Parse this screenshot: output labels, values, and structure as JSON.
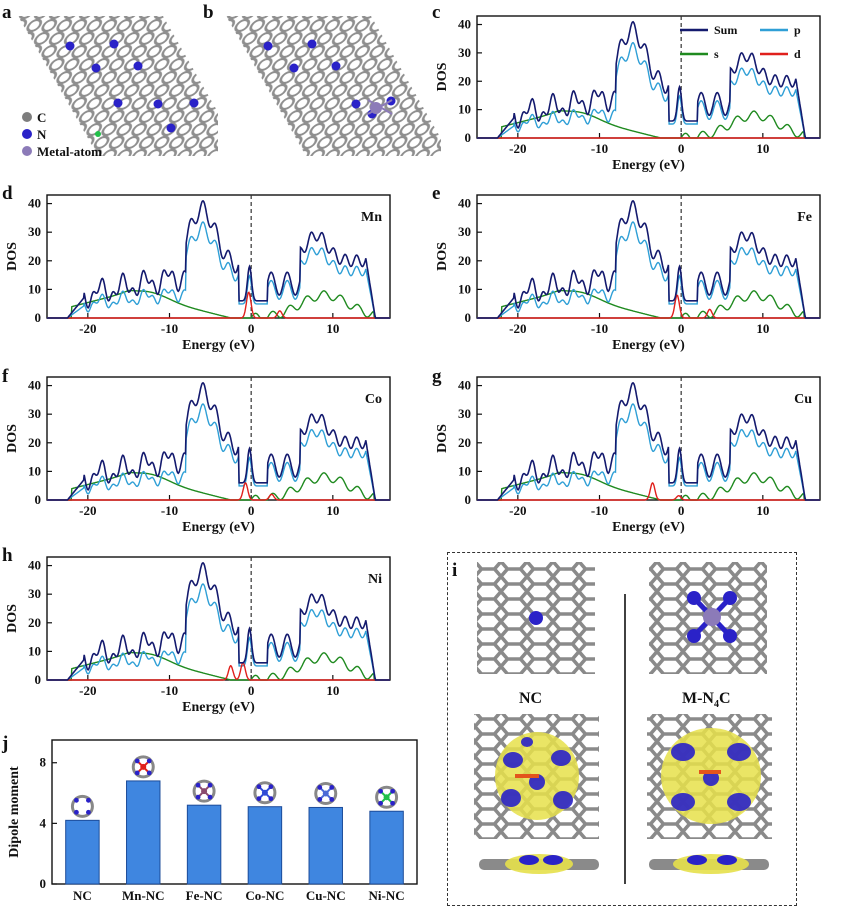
{
  "figure": {
    "panel_letters": [
      "a",
      "b",
      "c",
      "d",
      "e",
      "f",
      "g",
      "h",
      "i",
      "j"
    ],
    "atom_legend": [
      {
        "label": "C",
        "color": "#7d7d7d"
      },
      {
        "label": "N",
        "color": "#2a22c8"
      },
      {
        "label": "Metal-atom",
        "color": "#8c7bb8"
      }
    ],
    "dos_legend": [
      {
        "label": "Sum",
        "color": "#141a6e"
      },
      {
        "label": "p",
        "color": "#2f9fd6"
      },
      {
        "label": "s",
        "color": "#1f8a1f"
      },
      {
        "label": "d",
        "color": "#e0201c"
      }
    ],
    "panel_i": {
      "left_label": "NC",
      "right_label_main": "M-N",
      "right_sub": "4",
      "right_tail": "C"
    }
  },
  "chart_data": [
    {
      "panel": "c",
      "type": "line",
      "metal": "",
      "xlabel": "Energy (eV)",
      "ylabel": "DOS",
      "xlim": [
        -25,
        17
      ],
      "ylim": [
        0,
        43
      ],
      "xticks": [
        -20,
        -10,
        0,
        10
      ],
      "yticks": [
        0,
        10,
        20,
        30,
        40
      ],
      "fermi_level": 0,
      "has_d": false,
      "d_peaks": [],
      "series": [
        "Sum",
        "p",
        "s",
        "d"
      ]
    },
    {
      "panel": "d",
      "type": "line",
      "metal": "Mn",
      "xlabel": "Energy (eV)",
      "ylabel": "DOS",
      "xlim": [
        -25,
        17
      ],
      "ylim": [
        0,
        43
      ],
      "xticks": [
        -20,
        -10,
        0,
        10
      ],
      "yticks": [
        0,
        10,
        20,
        30,
        40
      ],
      "fermi_level": 0,
      "has_d": true,
      "d_peaks": [
        [
          -0.3,
          9
        ],
        [
          3.5,
          2.5
        ]
      ]
    },
    {
      "panel": "e",
      "type": "line",
      "metal": "Fe",
      "xlabel": "Energy (eV)",
      "ylabel": "DOS",
      "xlim": [
        -25,
        17
      ],
      "ylim": [
        0,
        43
      ],
      "xticks": [
        -20,
        -10,
        0,
        10
      ],
      "yticks": [
        0,
        10,
        20,
        30,
        40
      ],
      "fermi_level": 0,
      "has_d": true,
      "d_peaks": [
        [
          -0.5,
          8
        ],
        [
          3.5,
          3
        ]
      ]
    },
    {
      "panel": "f",
      "type": "line",
      "metal": "Co",
      "xlabel": "Energy (eV)",
      "ylabel": "DOS",
      "xlim": [
        -25,
        17
      ],
      "ylim": [
        0,
        43
      ],
      "xticks": [
        -20,
        -10,
        0,
        10
      ],
      "yticks": [
        0,
        10,
        20,
        30,
        40
      ],
      "fermi_level": 0,
      "has_d": true,
      "d_peaks": [
        [
          -0.7,
          6
        ],
        [
          2.5,
          2
        ]
      ]
    },
    {
      "panel": "g",
      "type": "line",
      "metal": "Cu",
      "xlabel": "Energy (eV)",
      "ylabel": "DOS",
      "xlim": [
        -25,
        17
      ],
      "ylim": [
        0,
        43
      ],
      "xticks": [
        -20,
        -10,
        0,
        10
      ],
      "yticks": [
        0,
        10,
        20,
        30,
        40
      ],
      "fermi_level": 0,
      "has_d": true,
      "d_peaks": [
        [
          -3.5,
          6
        ],
        [
          -0.3,
          1.5
        ]
      ]
    },
    {
      "panel": "h",
      "type": "line",
      "metal": "Ni",
      "xlabel": "Energy (eV)",
      "ylabel": "DOS",
      "xlim": [
        -25,
        17
      ],
      "ylim": [
        0,
        43
      ],
      "xticks": [
        -20,
        -10,
        0,
        10
      ],
      "yticks": [
        0,
        10,
        20,
        30,
        40
      ],
      "fermi_level": 0,
      "has_d": true,
      "d_peaks": [
        [
          -2.5,
          5
        ],
        [
          -1.0,
          6
        ]
      ]
    },
    {
      "panel": "j",
      "type": "bar",
      "xlabel": "",
      "ylabel": "Dipole moment",
      "categories": [
        "NC",
        "Mn-NC",
        "Fe-NC",
        "Co-NC",
        "Cu-NC",
        "Ni-NC"
      ],
      "values": [
        4.2,
        6.8,
        5.2,
        5.1,
        5.05,
        4.8
      ],
      "ylim": [
        0,
        9.5
      ],
      "yticks": [
        0,
        4,
        8
      ],
      "bar_color": "#3f86e0",
      "center_atom_colors": [
        "none",
        "#e0201c",
        "#8a4a6e",
        "#2f4ad6",
        "#4a6ad6",
        "#22c04a"
      ]
    }
  ]
}
